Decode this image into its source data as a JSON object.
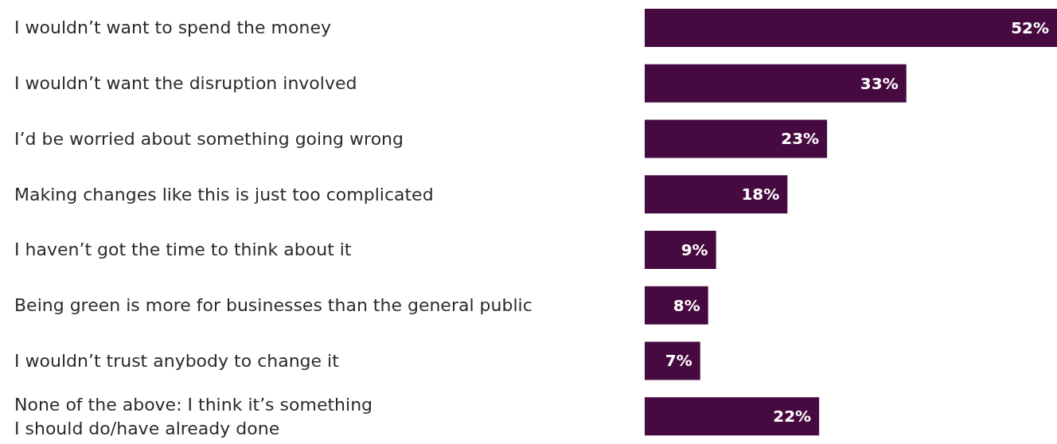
{
  "chart_data": {
    "type": "bar",
    "orientation": "horizontal",
    "categories": [
      "I wouldn’t want to spend the money",
      "I wouldn’t want the disruption involved",
      "I’d be worried about something going wrong",
      "Making changes like this is just too complicated",
      "I haven’t got the time to think about it",
      "Being green is more for businesses than the general public",
      "I wouldn’t trust anybody to change it",
      "None of the above: I think it’s something\nI should do/have already done"
    ],
    "values": [
      52,
      33,
      23,
      18,
      9,
      8,
      7,
      22
    ],
    "value_labels": [
      "52%",
      "33%",
      "23%",
      "18%",
      "9%",
      "8%",
      "7%",
      "22%"
    ],
    "color": "#470a40"
  }
}
